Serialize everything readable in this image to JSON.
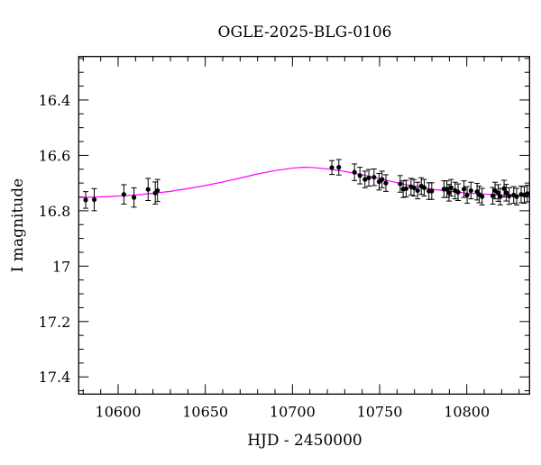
{
  "chart_data": {
    "type": "scatter",
    "title": "OGLE-2025-BLG-0106",
    "xlabel": "HJD - 2450000",
    "ylabel": "I magnitude",
    "xlim": [
      10577.4,
      10836
    ],
    "ylim": [
      16.243,
      17.462
    ],
    "y_inverted": true,
    "grid": false,
    "x_ticks": [
      10600,
      10650,
      10700,
      10750,
      10800
    ],
    "x_tick_labels": [
      "10600",
      "10650",
      "10700",
      "10750",
      "10800"
    ],
    "x_minor_step": 10,
    "y_ticks": [
      16.4,
      16.6,
      16.8,
      17,
      17.2,
      17.4
    ],
    "y_tick_labels": [
      "16.4",
      "16.6",
      "16.8",
      "17",
      "17.2",
      "17.4"
    ],
    "y_minor_step": 0.05,
    "colors": {
      "data": "#000000",
      "model": "#ff00ff",
      "axes": "#000000"
    },
    "series": [
      {
        "kind": "points-with-errorbars",
        "points": [
          [
            10581.4,
            16.761,
            0.03
          ],
          [
            10586.3,
            16.76,
            0.04
          ],
          [
            10603.3,
            16.741,
            0.035
          ],
          [
            10609.1,
            16.752,
            0.035
          ],
          [
            10617.2,
            16.723,
            0.04
          ],
          [
            10621.3,
            16.736,
            0.04
          ],
          [
            10622.6,
            16.727,
            0.04
          ],
          [
            10722.6,
            16.644,
            0.025
          ],
          [
            10726.6,
            16.643,
            0.028
          ],
          [
            10735.6,
            16.661,
            0.03
          ],
          [
            10738.7,
            16.673,
            0.03
          ],
          [
            10741.6,
            16.687,
            0.03
          ],
          [
            10743.8,
            16.681,
            0.03
          ],
          [
            10746.8,
            16.679,
            0.03
          ],
          [
            10749.7,
            16.695,
            0.03
          ],
          [
            10751.4,
            16.687,
            0.03
          ],
          [
            10753.6,
            16.7,
            0.03
          ],
          [
            10761.8,
            16.703,
            0.03
          ],
          [
            10763.5,
            16.722,
            0.03
          ],
          [
            10765.2,
            16.72,
            0.03
          ],
          [
            10768.0,
            16.713,
            0.03
          ],
          [
            10769.7,
            16.717,
            0.03
          ],
          [
            10771.8,
            16.727,
            0.03
          ],
          [
            10773.9,
            16.711,
            0.03
          ],
          [
            10775.6,
            16.717,
            0.03
          ],
          [
            10778.3,
            16.729,
            0.03
          ],
          [
            10779.9,
            16.729,
            0.03
          ],
          [
            10786.9,
            16.722,
            0.03
          ],
          [
            10788.6,
            16.722,
            0.03
          ],
          [
            10789.8,
            16.735,
            0.03
          ],
          [
            10791.0,
            16.717,
            0.03
          ],
          [
            10793.3,
            16.727,
            0.03
          ],
          [
            10795.0,
            16.733,
            0.03
          ],
          [
            10798.4,
            16.722,
            0.03
          ],
          [
            10800.2,
            16.743,
            0.03
          ],
          [
            10802.4,
            16.727,
            0.03
          ],
          [
            10805.9,
            16.731,
            0.03
          ],
          [
            10807.1,
            16.741,
            0.03
          ],
          [
            10808.8,
            16.749,
            0.03
          ],
          [
            10814.9,
            16.746,
            0.03
          ],
          [
            10816.2,
            16.727,
            0.03
          ],
          [
            10818.0,
            16.736,
            0.03
          ],
          [
            10819.2,
            16.749,
            0.03
          ],
          [
            10821.4,
            16.72,
            0.03
          ],
          [
            10822.6,
            16.735,
            0.03
          ],
          [
            10824.3,
            16.747,
            0.03
          ],
          [
            10826.9,
            16.743,
            0.03
          ],
          [
            10828.6,
            16.749,
            0.03
          ],
          [
            10831.2,
            16.741,
            0.03
          ],
          [
            10833.0,
            16.743,
            0.03
          ],
          [
            10834.7,
            16.738,
            0.03
          ]
        ]
      },
      {
        "kind": "model-curve",
        "points": [
          [
            10577,
            16.752
          ],
          [
            10590,
            16.75
          ],
          [
            10600,
            16.747
          ],
          [
            10610,
            16.743
          ],
          [
            10620,
            16.737
          ],
          [
            10630,
            16.73
          ],
          [
            10640,
            16.72
          ],
          [
            10650,
            16.709
          ],
          [
            10660,
            16.696
          ],
          [
            10670,
            16.682
          ],
          [
            10680,
            16.667
          ],
          [
            10690,
            16.655
          ],
          [
            10700,
            16.646
          ],
          [
            10706,
            16.643
          ],
          [
            10712,
            16.644
          ],
          [
            10720,
            16.649
          ],
          [
            10730,
            16.658
          ],
          [
            10740,
            16.67
          ],
          [
            10750,
            16.684
          ],
          [
            10760,
            16.699
          ],
          [
            10770,
            16.712
          ],
          [
            10780,
            16.722
          ],
          [
            10790,
            16.73
          ],
          [
            10800,
            16.736
          ],
          [
            10810,
            16.74
          ],
          [
            10820,
            16.743
          ],
          [
            10830,
            16.745
          ],
          [
            10836,
            16.746
          ]
        ]
      }
    ]
  }
}
